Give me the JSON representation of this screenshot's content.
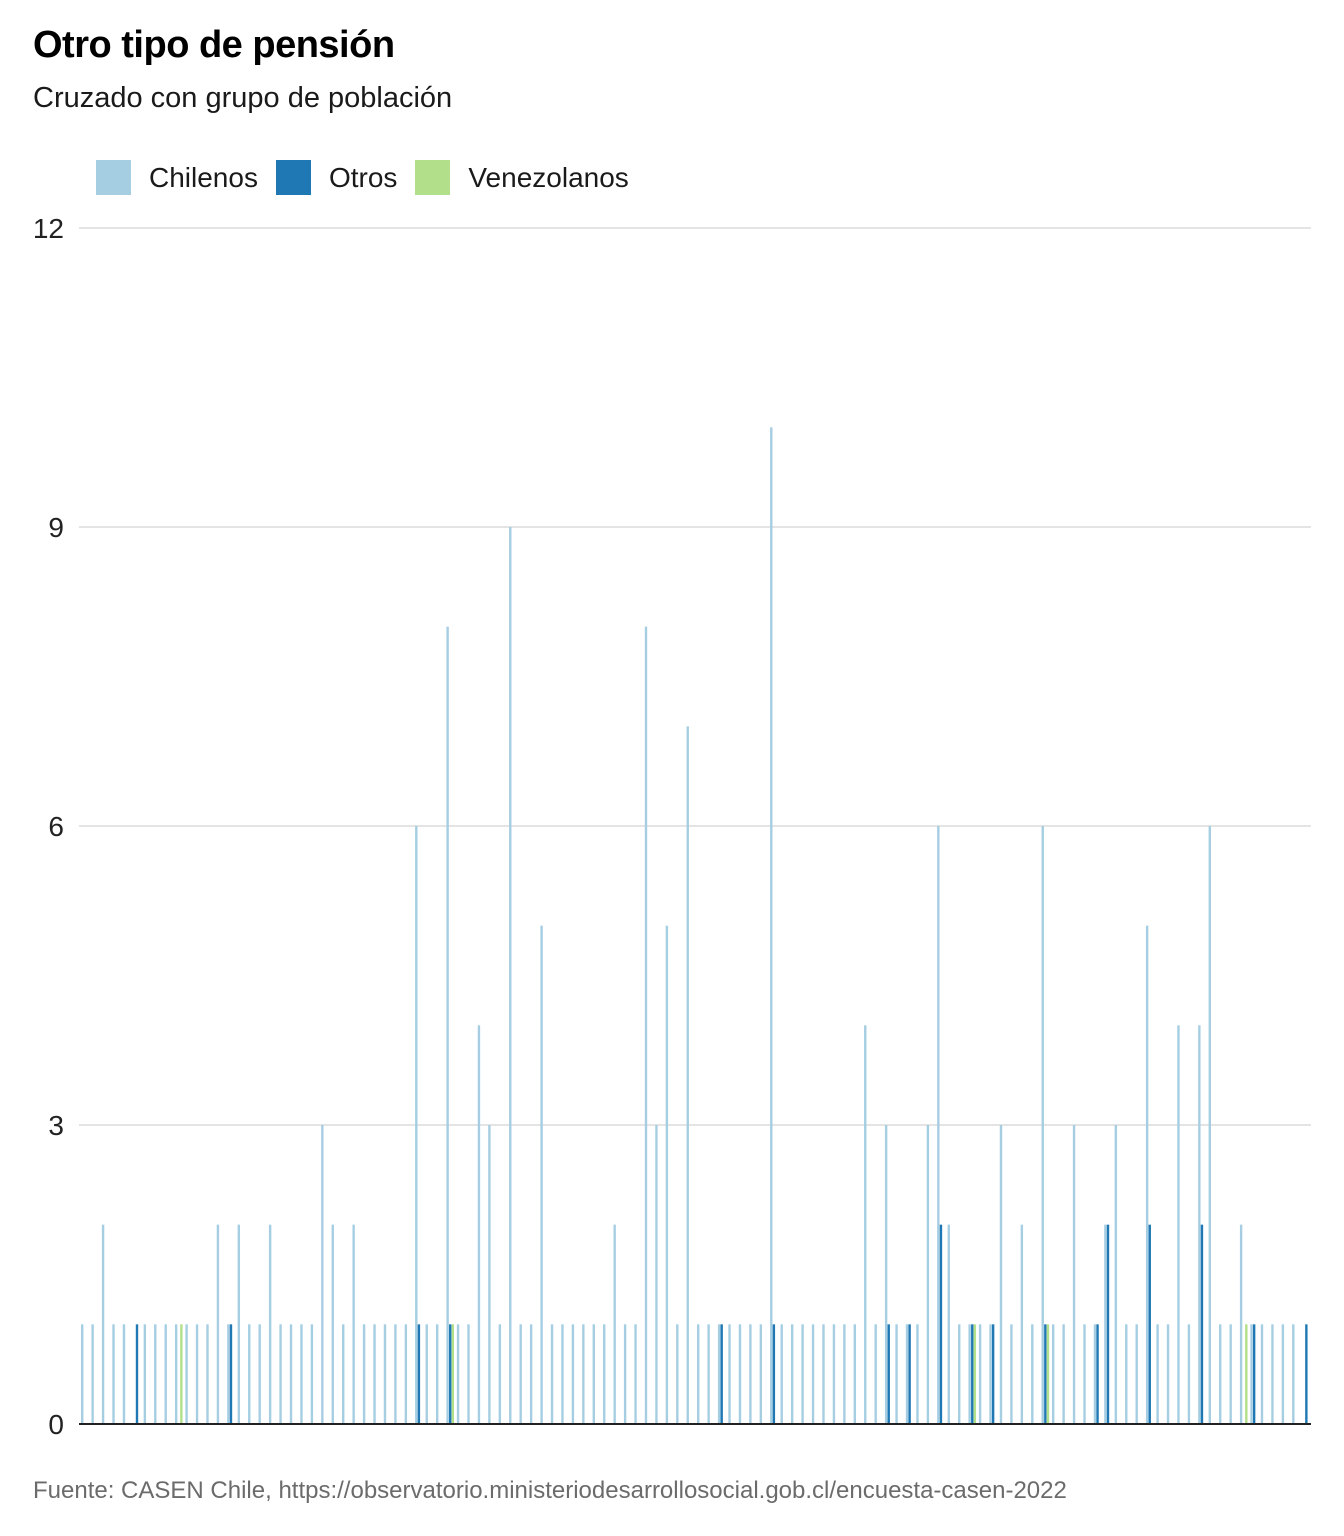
{
  "title": "Otro tipo de pensión",
  "subtitle": "Cruzado con grupo de población",
  "source": "Fuente: CASEN Chile, https://observatorio.ministeriodesarrollosocial.gob.cl/encuesta-casen-2022",
  "legend": [
    {
      "name": "Chilenos",
      "color": "#a6cee3"
    },
    {
      "name": "Otros",
      "color": "#1f78b4"
    },
    {
      "name": "Venezolanos",
      "color": "#b2df8a"
    }
  ],
  "chart_data": {
    "type": "bar",
    "title": "Otro tipo de pensión",
    "subtitle": "Cruzado con grupo de población",
    "xlabel": "",
    "ylabel": "",
    "ylim": [
      0,
      12
    ],
    "yticks": [
      0,
      3,
      6,
      9,
      12
    ],
    "grid": true,
    "legend_position": "top-left",
    "categories_note": "x tick labels overlap and are illegible in the image",
    "series": [
      {
        "name": "Chilenos",
        "color": "#a6cee3",
        "values": [
          1,
          1,
          2,
          1,
          1,
          0,
          1,
          1,
          1,
          1,
          1,
          1,
          1,
          2,
          1,
          2,
          1,
          1,
          2,
          1,
          1,
          1,
          1,
          3,
          2,
          1,
          2,
          1,
          1,
          1,
          1,
          1,
          6,
          1,
          1,
          8,
          1,
          1,
          4,
          3,
          1,
          9,
          1,
          1,
          5,
          1,
          1,
          1,
          1,
          1,
          1,
          2,
          1,
          1,
          8,
          3,
          5,
          1,
          7,
          1,
          1,
          1,
          1,
          1,
          1,
          1,
          10,
          1,
          1,
          1,
          1,
          1,
          1,
          1,
          1,
          4,
          1,
          3,
          1,
          1,
          1,
          3,
          6,
          2,
          1,
          1,
          1,
          1,
          3,
          1,
          2,
          1,
          6,
          1,
          1,
          3,
          1,
          1,
          2,
          3,
          1,
          1,
          5,
          1,
          1,
          4,
          1,
          4,
          6,
          1,
          1,
          2,
          1,
          1,
          1,
          1,
          1,
          0
        ]
      },
      {
        "name": "Otros",
        "color": "#1f78b4",
        "values": [
          0,
          0,
          0,
          0,
          0,
          1,
          0,
          0,
          0,
          0,
          0,
          0,
          0,
          0,
          1,
          0,
          0,
          0,
          0,
          0,
          0,
          0,
          0,
          0,
          0,
          0,
          0,
          0,
          0,
          0,
          0,
          0,
          1,
          0,
          0,
          1,
          0,
          0,
          0,
          0,
          0,
          0,
          0,
          0,
          0,
          0,
          0,
          0,
          0,
          0,
          0,
          0,
          0,
          0,
          0,
          0,
          0,
          0,
          0,
          0,
          0,
          1,
          0,
          0,
          0,
          0,
          1,
          0,
          0,
          0,
          0,
          0,
          0,
          0,
          0,
          0,
          0,
          1,
          0,
          1,
          0,
          0,
          2,
          0,
          0,
          1,
          0,
          1,
          0,
          0,
          0,
          0,
          1,
          0,
          0,
          0,
          0,
          1,
          2,
          0,
          0,
          0,
          2,
          0,
          0,
          0,
          0,
          2,
          0,
          0,
          0,
          0,
          1,
          0,
          0,
          0,
          0,
          1
        ]
      },
      {
        "name": "Venezolanos",
        "color": "#b2df8a",
        "values": [
          0,
          0,
          0,
          0,
          0,
          0,
          0,
          0,
          0,
          1,
          0,
          0,
          0,
          0,
          0,
          0,
          0,
          0,
          0,
          0,
          0,
          0,
          0,
          0,
          0,
          0,
          0,
          0,
          0,
          0,
          0,
          0,
          0,
          0,
          0,
          1,
          0,
          0,
          0,
          0,
          0,
          0,
          0,
          0,
          0,
          0,
          0,
          0,
          0,
          0,
          0,
          0,
          0,
          0,
          0,
          0,
          0,
          0,
          0,
          0,
          0,
          0,
          0,
          0,
          0,
          0,
          0,
          0,
          0,
          0,
          0,
          0,
          0,
          0,
          0,
          0,
          0,
          0,
          0,
          0,
          0,
          0,
          0,
          0,
          0,
          1,
          0,
          0,
          0,
          0,
          0,
          0,
          1,
          0,
          0,
          0,
          0,
          0,
          0,
          0,
          0,
          0,
          0,
          0,
          0,
          0,
          0,
          0,
          0,
          0,
          0,
          1,
          0,
          0,
          0,
          0,
          0,
          0
        ]
      }
    ]
  }
}
